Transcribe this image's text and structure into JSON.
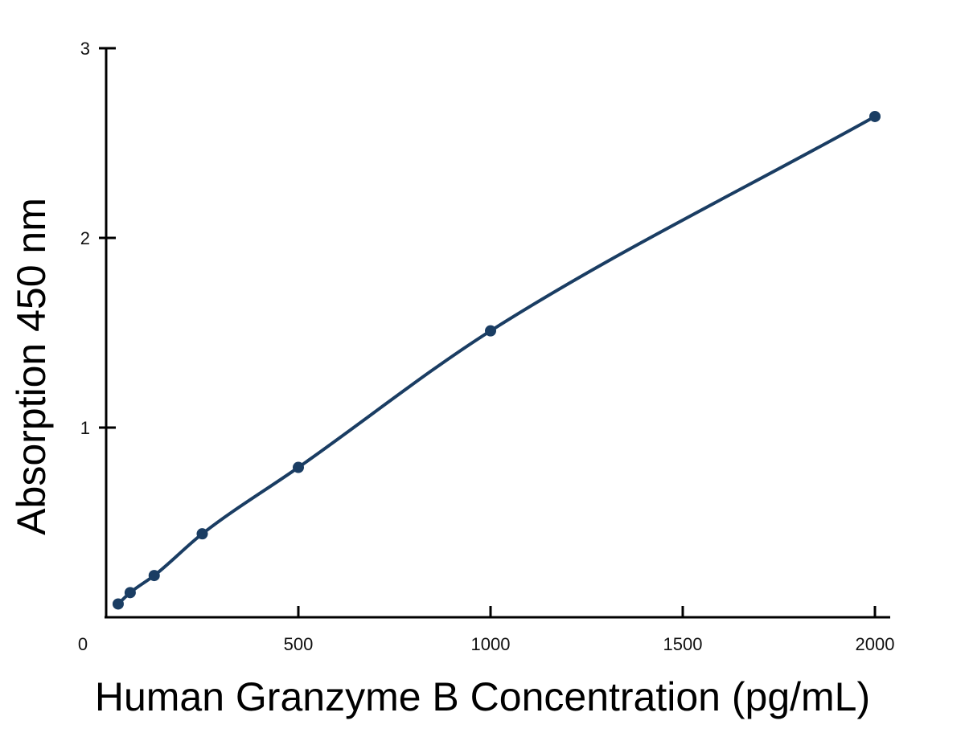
{
  "chart_data": {
    "type": "scatter",
    "title": "",
    "xlabel": "Human Granzyme B Concentration (pg/mL)",
    "ylabel": "Absorption 450 nm",
    "xlim": [
      0,
      2050
    ],
    "ylim": [
      0,
      3
    ],
    "x_ticks": [
      0,
      500,
      1000,
      1500,
      2000
    ],
    "y_ticks": [
      1,
      2,
      3
    ],
    "x_tick_labels": [
      "0",
      "500",
      "1000",
      "1500",
      "2000"
    ],
    "y_tick_labels": [
      "1",
      "2",
      "3"
    ],
    "grid": false,
    "legend": "none",
    "series": [
      {
        "x": [
          31.25,
          62.5,
          125,
          250,
          500,
          1000,
          2000
        ],
        "y": [
          0.07,
          0.13,
          0.22,
          0.44,
          0.79,
          1.51,
          2.64
        ],
        "fit_curve": true
      }
    ],
    "colors": {
      "series": "#1a3d63",
      "axis": "#000000"
    }
  }
}
